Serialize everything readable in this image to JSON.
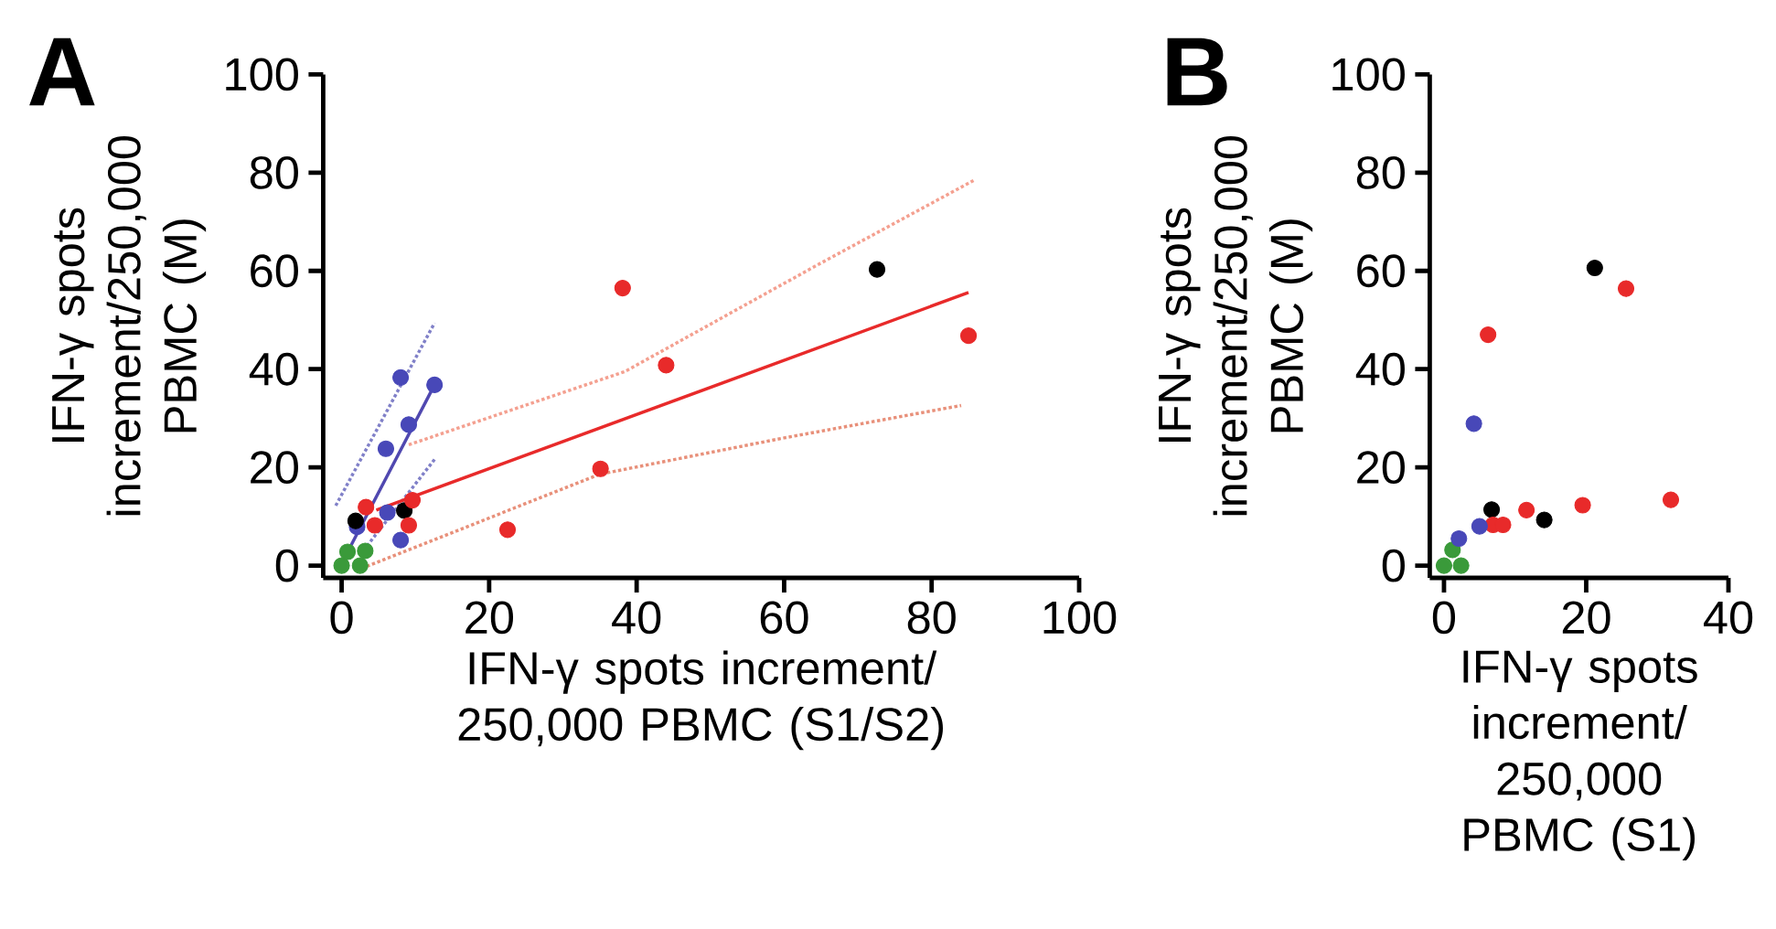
{
  "chart_data": [
    {
      "type": "scatter",
      "title": "A",
      "xlabel": "IFN-γ spots increment/ 250,000 PBMC (S1/S2)",
      "ylabel": "IFN-γ spots increment/250,000 PBMC (M)",
      "xlim": [
        -2.5,
        100
      ],
      "ylim": [
        -2.5,
        100
      ],
      "xticks": [
        0,
        20,
        40,
        60,
        80,
        100
      ],
      "yticks": [
        0,
        20,
        40,
        60,
        80,
        100
      ],
      "marker": "circle",
      "series": [
        {
          "type": "line",
          "color": "#f4a090",
          "line_style": "dotted",
          "marker": "none",
          "x": [
            9.1,
            38.4,
            64.5,
            85.8
          ],
          "values": [
            24.6,
            39.5,
            61.2,
            78.5
          ]
        },
        {
          "type": "line",
          "color": "#e8907a",
          "line_style": "dotted",
          "marker": "none",
          "x": [
            2,
            35,
            60,
            84
          ],
          "values": [
            -1,
            18.6,
            26,
            32.6
          ]
        },
        {
          "type": "line",
          "color": "#8080c8",
          "line_style": "dotted",
          "marker": "none",
          "x": [
            -0.8,
            12.6
          ],
          "values": [
            12.2,
            49.4
          ]
        },
        {
          "type": "line",
          "color": "#8080c8",
          "line_style": "dotted",
          "marker": "none",
          "x": [
            2.5,
            12.8
          ],
          "values": [
            2.2,
            22
          ]
        },
        {
          "type": "line",
          "color": "#e82a2a",
          "line_style": "solid",
          "marker": "none",
          "x": [
            4.7,
            85
          ],
          "values": [
            11.3,
            55.6
          ]
        },
        {
          "type": "line",
          "color": "#5048b0",
          "line_style": "solid",
          "marker": "none",
          "x": [
            -0.5,
            12.6
          ],
          "values": [
            -1,
            36.8
          ]
        },
        {
          "color": "#3a9a3a",
          "x": [
            0,
            2.5,
            0.8,
            3.2
          ],
          "values": [
            0,
            0,
            2.8,
            3
          ]
        },
        {
          "color": "#4848b8",
          "x": [
            8,
            12.6,
            9.1,
            6,
            6.2,
            8,
            2.1
          ],
          "values": [
            38.3,
            36.8,
            28.7,
            23.8,
            10.8,
            5.2,
            7.9
          ]
        },
        {
          "color": "#000000",
          "x": [
            72.6,
            1.9,
            8.5
          ],
          "values": [
            60.3,
            9.1,
            11.2
          ]
        },
        {
          "color": "#e82a2a",
          "x": [
            38.1,
            44,
            85,
            35.1,
            22.5,
            3.3,
            4.5,
            9.1,
            9.6
          ],
          "values": [
            56.5,
            40.8,
            46.8,
            19.7,
            7.3,
            11.9,
            8.2,
            8.2,
            13.3
          ]
        }
      ]
    },
    {
      "type": "scatter",
      "title": "B",
      "xlabel": "IFN-γ spots increment/ 250,000 PBMC (S1)",
      "ylabel": "IFN-γ spots increment/250,000 PBMC (M)",
      "xlim": [
        -2,
        40
      ],
      "ylim": [
        -2.5,
        100
      ],
      "xticks": [
        0,
        20,
        40
      ],
      "yticks": [
        0,
        20,
        40,
        60,
        80,
        100
      ],
      "marker": "circle",
      "series": [
        {
          "color": "#3a9a3a",
          "x": [
            0,
            2.4,
            1.2
          ],
          "values": [
            0,
            0,
            3.2
          ]
        },
        {
          "color": "#000000",
          "x": [
            21.2,
            6.7,
            14.1
          ],
          "values": [
            60.6,
            11.4,
            9.3
          ]
        },
        {
          "color": "#e82a2a",
          "x": [
            25.6,
            6.2,
            6.9,
            8.3,
            11.6,
            19.5,
            31.9
          ],
          "values": [
            56.4,
            47,
            8.3,
            8.3,
            11.3,
            12.3,
            13.4
          ]
        },
        {
          "color": "#4848b8",
          "x": [
            4.2,
            2.1,
            5
          ],
          "values": [
            28.9,
            5.5,
            8
          ]
        }
      ]
    }
  ]
}
